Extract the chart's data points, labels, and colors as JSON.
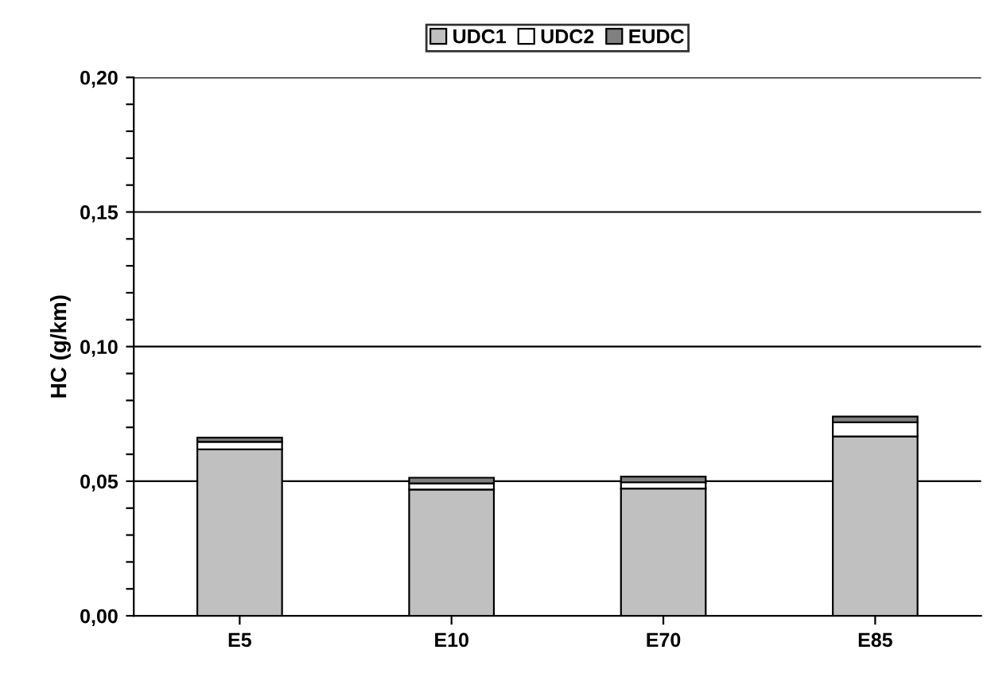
{
  "chart_data": {
    "type": "bar",
    "stacked": true,
    "ylabel": "HC (g/km)",
    "categories": [
      "E5",
      "E10",
      "E70",
      "E85"
    ],
    "series": [
      {
        "name": "UDC1",
        "color": "#c0c0c0",
        "values": [
          0.0618,
          0.0469,
          0.0473,
          0.0666
        ]
      },
      {
        "name": "UDC2",
        "color": "#ffffff",
        "values": [
          0.0028,
          0.0023,
          0.0023,
          0.0053
        ]
      },
      {
        "name": "EUDC",
        "color": "#808080",
        "values": [
          0.0016,
          0.0021,
          0.0021,
          0.0021
        ]
      }
    ],
    "ylim": [
      0,
      0.2
    ],
    "yticks": [
      {
        "value": 0,
        "label": "0,00"
      },
      {
        "value": 0.01,
        "label": null
      },
      {
        "value": 0.02,
        "label": null
      },
      {
        "value": 0.03,
        "label": null
      },
      {
        "value": 0.04,
        "label": null
      },
      {
        "value": 0.05,
        "label": "0,05"
      },
      {
        "value": 0.06,
        "label": null
      },
      {
        "value": 0.07,
        "label": null
      },
      {
        "value": 0.08,
        "label": null
      },
      {
        "value": 0.09,
        "label": null
      },
      {
        "value": 0.1,
        "label": "0,10"
      },
      {
        "value": 0.11,
        "label": null
      },
      {
        "value": 0.12,
        "label": null
      },
      {
        "value": 0.13,
        "label": null
      },
      {
        "value": 0.14,
        "label": null
      },
      {
        "value": 0.15,
        "label": "0,15"
      },
      {
        "value": 0.16,
        "label": null
      },
      {
        "value": 0.17,
        "label": null
      },
      {
        "value": 0.18,
        "label": null
      },
      {
        "value": 0.19,
        "label": null
      },
      {
        "value": 0.2,
        "label": "0,20"
      }
    ],
    "grid": "y",
    "legend": "top"
  }
}
